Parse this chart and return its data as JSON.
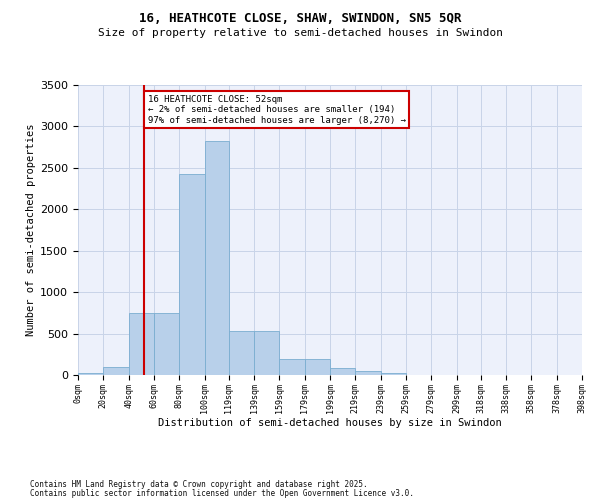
{
  "title1": "16, HEATHCOTE CLOSE, SHAW, SWINDON, SN5 5QR",
  "title2": "Size of property relative to semi-detached houses in Swindon",
  "xlabel": "Distribution of semi-detached houses by size in Swindon",
  "ylabel": "Number of semi-detached properties",
  "footnote1": "Contains HM Land Registry data © Crown copyright and database right 2025.",
  "footnote2": "Contains public sector information licensed under the Open Government Licence v3.0.",
  "annotation_title": "16 HEATHCOTE CLOSE: 52sqm",
  "annotation_line1": "← 2% of semi-detached houses are smaller (194)",
  "annotation_line2": "97% of semi-detached houses are larger (8,270) →",
  "property_size": 52,
  "bar_color": "#b8d0ea",
  "bar_edgecolor": "#7aadd0",
  "redline_color": "#cc0000",
  "grid_color": "#c8d4e8",
  "bg_color": "#edf1fb",
  "ylim_max": 3500,
  "bin_edges": [
    0,
    20,
    40,
    60,
    80,
    100,
    119,
    139,
    159,
    179,
    199,
    219,
    239,
    259,
    279,
    299,
    318,
    338,
    358,
    378,
    398
  ],
  "bin_counts": [
    20,
    100,
    750,
    750,
    2420,
    2820,
    530,
    530,
    190,
    190,
    80,
    50,
    20,
    5,
    5,
    0,
    0,
    0,
    0,
    0
  ],
  "tick_labels": [
    "0sqm",
    "20sqm",
    "40sqm",
    "60sqm",
    "80sqm",
    "100sqm",
    "119sqm",
    "139sqm",
    "159sqm",
    "179sqm",
    "199sqm",
    "219sqm",
    "239sqm",
    "259sqm",
    "279sqm",
    "299sqm",
    "318sqm",
    "338sqm",
    "358sqm",
    "378sqm",
    "398sqm"
  ]
}
